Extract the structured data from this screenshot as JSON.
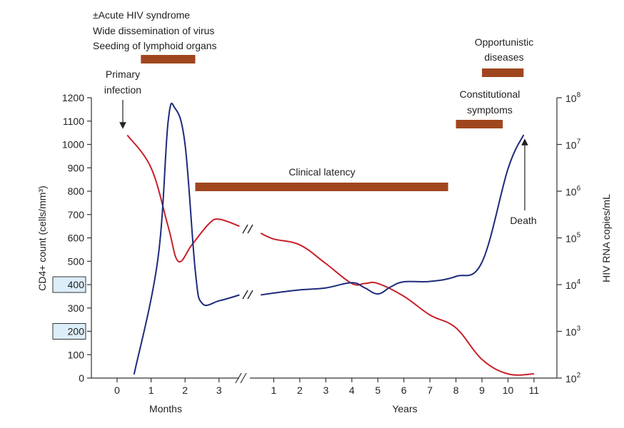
{
  "colors": {
    "cd4_line": "#c8202a",
    "rna_line": "#1e2a7a",
    "phase_bar": "#a0461e",
    "highlight_box_fill": "#dceefa",
    "highlight_box_stroke": "#333333",
    "axis": "#333333"
  },
  "chart_data": {
    "type": "line",
    "title": "",
    "left_axis": {
      "label": "CD4+ count (cells/mm³)",
      "range": [
        0,
        1200
      ],
      "ticks": [
        "0",
        "100",
        "200",
        "300",
        "400",
        "500",
        "600",
        "700",
        "800",
        "900",
        "1000",
        "1100",
        "1200"
      ],
      "highlighted_ticks": [
        "200",
        "400"
      ]
    },
    "right_axis": {
      "label": "HIV RNA copies/mL",
      "scale": "log",
      "range": [
        100,
        100000000
      ],
      "ticks": [
        {
          "base": "10",
          "exp": "2"
        },
        {
          "base": "10",
          "exp": "3"
        },
        {
          "base": "10",
          "exp": "4"
        },
        {
          "base": "10",
          "exp": "5"
        },
        {
          "base": "10",
          "exp": "6"
        },
        {
          "base": "10",
          "exp": "7"
        },
        {
          "base": "10",
          "exp": "8"
        }
      ]
    },
    "x_axis": {
      "months_label": "Months",
      "years_label": "Years",
      "months_ticks": [
        "0",
        "1",
        "2",
        "3"
      ],
      "years_ticks": [
        "1",
        "2",
        "3",
        "4",
        "5",
        "6",
        "7",
        "8",
        "9",
        "10",
        "11"
      ],
      "note": "two segments; axis break between 3 months and 1 year"
    },
    "series": [
      {
        "name": "CD4+ count",
        "axis": "left",
        "unit": "cells/mm³",
        "months_segment": [
          [
            0.3,
            1040
          ],
          [
            1.0,
            900
          ],
          [
            1.5,
            650
          ],
          [
            1.8,
            500
          ],
          [
            2.2,
            570
          ],
          [
            2.7,
            660
          ],
          [
            3.0,
            680
          ],
          [
            3.6,
            650
          ]
        ],
        "years_segment": [
          [
            0.5,
            620
          ],
          [
            1.0,
            595
          ],
          [
            2.0,
            570
          ],
          [
            3.0,
            490
          ],
          [
            4.0,
            405
          ],
          [
            4.5,
            405
          ],
          [
            5.0,
            405
          ],
          [
            6.0,
            350
          ],
          [
            7.0,
            270
          ],
          [
            8.0,
            215
          ],
          [
            9.0,
            80
          ],
          [
            10.0,
            18
          ],
          [
            11.0,
            18
          ]
        ]
      },
      {
        "name": "HIV RNA copies/mL",
        "axis": "right",
        "unit": "copies/mL",
        "months_segment": [
          [
            0.5,
            120
          ],
          [
            1.2,
            35000
          ],
          [
            1.5,
            30000000
          ],
          [
            1.7,
            60000000
          ],
          [
            2.0,
            10000000
          ],
          [
            2.3,
            20000
          ],
          [
            2.5,
            4000
          ],
          [
            3.0,
            4500
          ],
          [
            3.6,
            6000
          ]
        ],
        "years_segment": [
          [
            0.5,
            6000
          ],
          [
            1.0,
            6600
          ],
          [
            2.0,
            7700
          ],
          [
            3.0,
            8500
          ],
          [
            4.0,
            11000
          ],
          [
            4.5,
            8500
          ],
          [
            5.0,
            6300
          ],
          [
            5.5,
            9000
          ],
          [
            6.0,
            11500
          ],
          [
            7.0,
            11700
          ],
          [
            8.0,
            15000
          ],
          [
            9.0,
            30000
          ],
          [
            10.0,
            3000000
          ],
          [
            10.6,
            16000000
          ]
        ]
      }
    ],
    "phases": [
      {
        "name": "acute",
        "start": {
          "segment": "months",
          "value": 0.7
        },
        "end": {
          "segment": "months",
          "value": 2.3
        }
      },
      {
        "name": "clinical-latency",
        "start": {
          "segment": "months",
          "value": 2.3
        },
        "end": {
          "segment": "years",
          "value": 7.7
        }
      },
      {
        "name": "constitutional-symptoms",
        "start": {
          "segment": "years",
          "value": 8.0
        },
        "end": {
          "segment": "years",
          "value": 9.8
        }
      },
      {
        "name": "opportunistic-diseases",
        "start": {
          "segment": "years",
          "value": 9.0
        },
        "end": {
          "segment": "years",
          "value": 10.6
        }
      }
    ],
    "annotations": {
      "acute_lines": [
        "±Acute HIV syndrome",
        "Wide dissemination of virus",
        "Seeding of lymphoid organs"
      ],
      "primary_infection_lines": [
        "Primary",
        "infection"
      ],
      "clinical_latency": "Clinical latency",
      "constitutional_lines": [
        "Constitutional",
        "symptoms"
      ],
      "opportunistic_lines": [
        "Opportunistic",
        "diseases"
      ],
      "death": "Death"
    }
  }
}
